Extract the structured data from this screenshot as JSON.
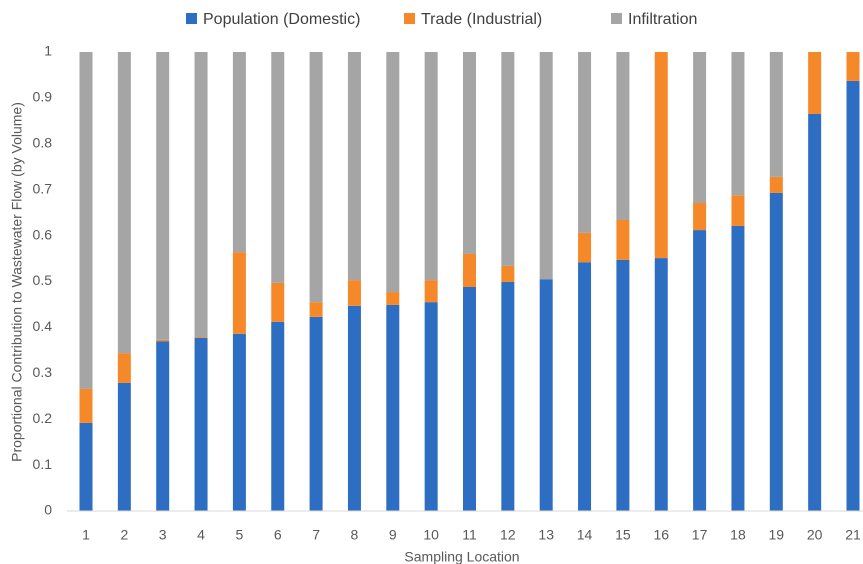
{
  "chart_data": {
    "type": "stacked_bar",
    "xlabel": "Sampling Location",
    "ylabel": "Proportional Contribution to Wastewater Flow (by Volume)",
    "categories": [
      "1",
      "2",
      "3",
      "4",
      "5",
      "6",
      "7",
      "8",
      "9",
      "10",
      "11",
      "12",
      "13",
      "14",
      "15",
      "16",
      "17",
      "18",
      "19",
      "20",
      "21"
    ],
    "series": [
      {
        "name": "Population (Domestic)",
        "color": "#2e6ec2",
        "values": [
          0.192,
          0.279,
          0.37,
          0.377,
          0.386,
          0.412,
          0.423,
          0.447,
          0.449,
          0.455,
          0.488,
          0.499,
          0.505,
          0.542,
          0.547,
          0.551,
          0.612,
          0.621,
          0.693,
          0.865,
          0.937
        ]
      },
      {
        "name": "Trade (Industrial)",
        "color": "#f5892a",
        "values": [
          0.074,
          0.065,
          0.003,
          0.002,
          0.178,
          0.085,
          0.032,
          0.056,
          0.028,
          0.048,
          0.072,
          0.035,
          0.0,
          0.064,
          0.087,
          0.449,
          0.059,
          0.067,
          0.035,
          0.135,
          0.063
        ]
      },
      {
        "name": "Infiltration",
        "color": "#a5a5a5",
        "values": [
          0.734,
          0.656,
          0.627,
          0.621,
          0.436,
          0.503,
          0.545,
          0.497,
          0.523,
          0.497,
          0.44,
          0.466,
          0.495,
          0.394,
          0.366,
          0.0,
          0.329,
          0.312,
          0.272,
          0.0,
          0.0
        ]
      }
    ],
    "ylim": [
      0,
      1
    ],
    "yticks": [
      0,
      0.1,
      0.2,
      0.3,
      0.4,
      0.5,
      0.6,
      0.7,
      0.8,
      0.9,
      1
    ],
    "grid": false,
    "legend": "top"
  }
}
